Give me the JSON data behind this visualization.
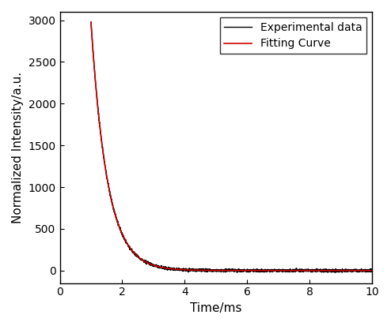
{
  "title": "",
  "xlabel": "Time/ms",
  "ylabel": "Normalized Intensity/a.u.",
  "xlim": [
    0,
    10
  ],
  "ylim": [
    -150,
    3100
  ],
  "yticks": [
    0,
    500,
    1000,
    1500,
    2000,
    2500,
    3000
  ],
  "xticks": [
    0,
    2,
    4,
    6,
    8,
    10
  ],
  "exp_color": "#000000",
  "fit_color": "#cc0000",
  "legend_labels": [
    "Experimental data",
    "Fitting Curve"
  ],
  "decay_amplitude": 2970,
  "decay_tau": 0.52,
  "x_start": 1.0,
  "noise_amplitude": 8,
  "background": "#ffffff",
  "exp_linewidth": 1.0,
  "fit_linewidth": 1.2,
  "legend_fontsize": 10,
  "axis_fontsize": 11,
  "tick_fontsize": 10
}
